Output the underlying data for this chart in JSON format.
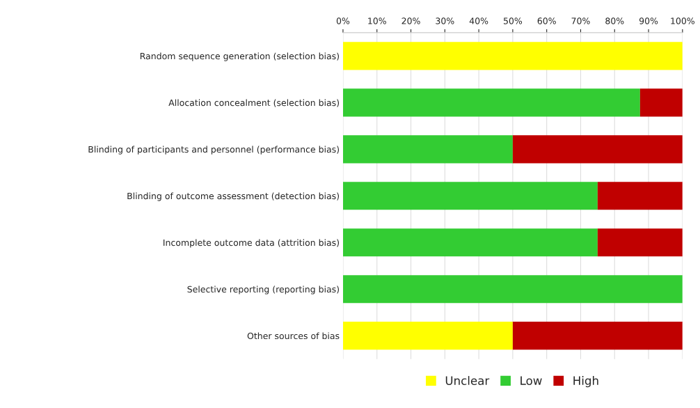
{
  "chart_data": {
    "type": "bar",
    "orientation": "horizontal",
    "stacked": true,
    "categories": [
      "Random sequence generation (selection bias)",
      "Allocation concealment (selection bias)",
      "Blinding of participants and personnel (performance bias)",
      "Blinding of outcome assessment (detection bias)",
      "Incomplete outcome data (attrition bias)",
      "Selective reporting (reporting bias)",
      "Other sources of bias"
    ],
    "series": [
      {
        "name": "Unclear",
        "color": "#ffff00",
        "values": [
          100,
          null,
          null,
          null,
          null,
          null,
          50
        ]
      },
      {
        "name": "Low",
        "color": "#33cc33",
        "values": [
          null,
          87.5,
          50,
          75,
          75,
          100,
          null
        ]
      },
      {
        "name": "High",
        "color": "#c00000",
        "values": [
          null,
          12.5,
          50,
          25,
          25,
          null,
          50
        ]
      }
    ],
    "xlim": [
      0,
      100
    ],
    "xticks": [
      {
        "value": 0,
        "label": "0%"
      },
      {
        "value": 10,
        "label": "10%"
      },
      {
        "value": 20,
        "label": "20%"
      },
      {
        "value": 30,
        "label": "30%"
      },
      {
        "value": 40,
        "label": "40%"
      },
      {
        "value": 50,
        "label": "50%"
      },
      {
        "value": 60,
        "label": "60%"
      },
      {
        "value": 70,
        "label": "70%"
      },
      {
        "value": 80,
        "label": "80%"
      },
      {
        "value": 90,
        "label": "90%"
      },
      {
        "value": 100,
        "label": "100%"
      }
    ],
    "grid": "x",
    "legend": "bottom"
  }
}
